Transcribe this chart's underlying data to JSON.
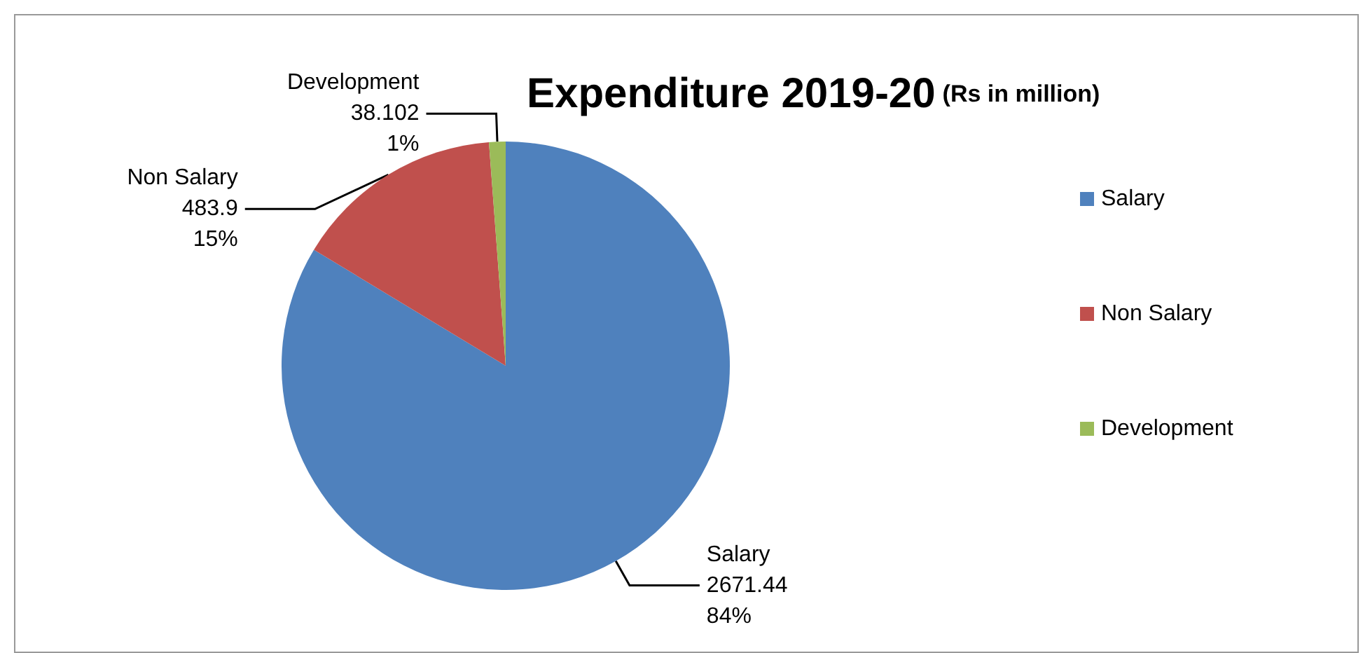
{
  "chart_data": {
    "type": "pie",
    "title": "Expenditure 2019-20",
    "subtitle": "(Rs in million)",
    "categories": [
      "Salary",
      "Non Salary",
      "Development"
    ],
    "values": [
      2671.44,
      483.9,
      38.102
    ],
    "colors": [
      "#4f81bd",
      "#c0504d",
      "#9bbb59"
    ],
    "value_labels": [
      "2671.44\n84%",
      "483.9\n15%",
      "38.102\n1%"
    ],
    "legend": "right"
  }
}
